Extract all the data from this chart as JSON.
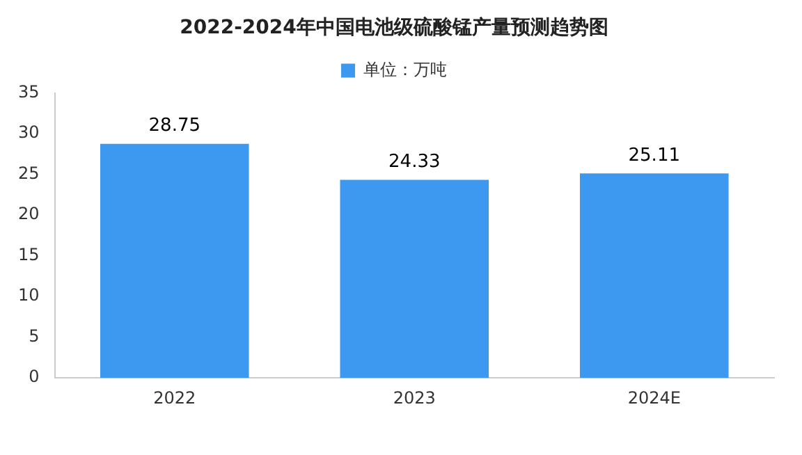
{
  "chart_data": {
    "type": "bar",
    "title": "2022-2024年中国电池级硫酸锰产量预测趋势图",
    "categories": [
      "2022",
      "2023",
      "2024E"
    ],
    "series": [
      {
        "name": "单位：万吨",
        "color": "#3d99ef",
        "values": [
          28.75,
          24.33,
          25.11
        ]
      }
    ],
    "ylim": [
      0,
      35
    ],
    "yticks": [
      0,
      5,
      10,
      15,
      20,
      25,
      30,
      35
    ],
    "grid": false,
    "legend": "top",
    "data_labels": true
  }
}
